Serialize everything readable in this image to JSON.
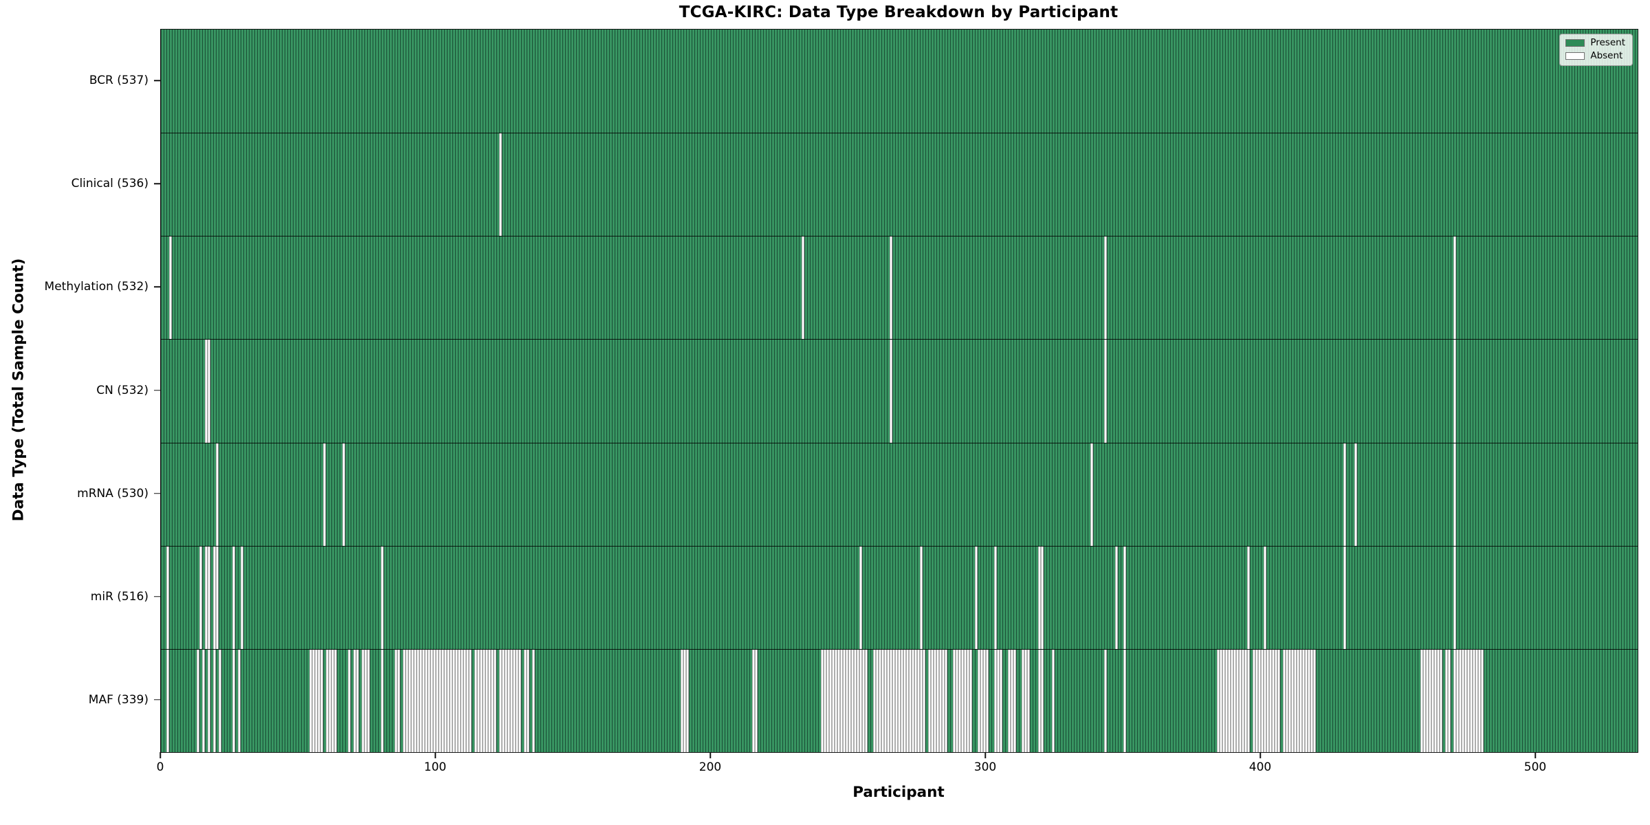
{
  "title": "TCGA-KIRC: Data Type Breakdown by Participant",
  "x_axis": {
    "label": "Participant",
    "ticks": [
      0,
      100,
      200,
      300,
      400,
      500
    ]
  },
  "y_axis": {
    "label": "Data Type (Total Sample Count)"
  },
  "legend": {
    "items": [
      {
        "label": "Present",
        "color": "#2e8b57"
      },
      {
        "label": "Absent",
        "color": "#ffffff"
      }
    ]
  },
  "colors": {
    "present_fill": "#389562",
    "present_edge": "#1f5e42",
    "absent_fill": "#ffffff",
    "absent_edge": "#a8a8a8",
    "separator": "#000000"
  },
  "chart_data": {
    "type": "heatmap",
    "title": "TCGA-KIRC: Data Type Breakdown by Participant",
    "xlabel": "Participant",
    "ylabel": "Data Type (Total Sample Count)",
    "xlim": [
      0,
      537
    ],
    "n_participants": 537,
    "legend_position": "upper right",
    "categories": [
      "BCR (537)",
      "Clinical (536)",
      "Methylation (532)",
      "CN (532)",
      "mRNA (530)",
      "miR (516)",
      "MAF (339)"
    ],
    "rows": [
      {
        "label": "BCR",
        "total": 537,
        "absent": []
      },
      {
        "label": "Clinical",
        "total": 536,
        "absent": [
          123
        ]
      },
      {
        "label": "Methylation",
        "total": 532,
        "absent": [
          3,
          233,
          265,
          343,
          470
        ]
      },
      {
        "label": "CN",
        "total": 532,
        "absent": [
          16,
          17,
          265,
          343,
          470
        ]
      },
      {
        "label": "mRNA",
        "total": 530,
        "absent": [
          20,
          59,
          66,
          338,
          430,
          434,
          470
        ]
      },
      {
        "label": "miR",
        "total": 516,
        "absent": [
          2,
          14,
          16,
          17,
          19,
          20,
          26,
          29,
          80,
          254,
          276,
          296,
          303,
          319,
          320,
          347,
          350,
          395,
          401,
          430,
          470
        ]
      },
      {
        "label": "MAF",
        "total": 339,
        "absent": [
          2,
          13,
          15,
          17,
          19,
          21,
          26,
          28,
          54,
          55,
          56,
          57,
          58,
          60,
          61,
          62,
          63,
          68,
          70,
          71,
          73,
          74,
          75,
          80,
          85,
          86,
          88,
          89,
          90,
          91,
          92,
          93,
          94,
          95,
          96,
          97,
          98,
          99,
          100,
          101,
          102,
          103,
          104,
          105,
          106,
          107,
          108,
          109,
          110,
          111,
          112,
          114,
          115,
          116,
          117,
          118,
          119,
          120,
          121,
          123,
          124,
          125,
          126,
          127,
          128,
          129,
          130,
          132,
          133,
          135,
          189,
          190,
          191,
          215,
          216,
          240,
          241,
          242,
          243,
          244,
          245,
          246,
          247,
          248,
          249,
          250,
          251,
          252,
          253,
          254,
          255,
          256,
          259,
          260,
          261,
          262,
          263,
          264,
          265,
          266,
          267,
          268,
          269,
          270,
          271,
          272,
          273,
          274,
          275,
          276,
          277,
          279,
          280,
          281,
          282,
          283,
          284,
          285,
          288,
          289,
          290,
          291,
          292,
          293,
          294,
          297,
          298,
          299,
          300,
          303,
          304,
          305,
          308,
          309,
          310,
          313,
          314,
          315,
          319,
          320,
          324,
          343,
          350,
          384,
          385,
          386,
          387,
          388,
          389,
          390,
          391,
          392,
          393,
          394,
          395,
          397,
          398,
          399,
          400,
          401,
          402,
          403,
          404,
          405,
          406,
          408,
          409,
          410,
          411,
          412,
          413,
          414,
          415,
          416,
          417,
          418,
          419,
          458,
          459,
          460,
          461,
          462,
          463,
          464,
          465,
          467,
          468,
          470,
          471,
          472,
          473,
          474,
          475,
          476,
          477,
          478,
          479,
          480
        ]
      }
    ]
  }
}
